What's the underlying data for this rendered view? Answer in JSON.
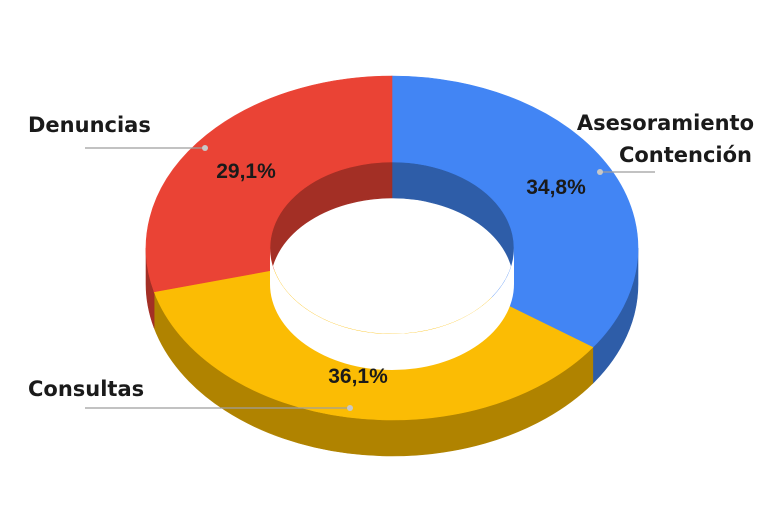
{
  "chart_data": {
    "type": "pie",
    "style": "3d-donut",
    "categories": [
      "Asesoramiento Contención",
      "Consultas",
      "Denuncias"
    ],
    "values": [
      34.8,
      36.1,
      29.1
    ],
    "data_labels": [
      "34,8%",
      "36,1%",
      "29,1%"
    ],
    "category_labels": {
      "asesoramiento": [
        "Asesoramiento",
        "Contención"
      ],
      "consultas": "Consultas",
      "denuncias": "Denuncias"
    },
    "colors": {
      "asesoramiento": "#4285F4",
      "consultas": "#FBBC04",
      "denuncias": "#EA4335"
    },
    "side_colors": {
      "asesoramiento": "#2E5DA8",
      "consultas": "#B08300",
      "denuncias": "#A32F25"
    },
    "legend": "none"
  }
}
